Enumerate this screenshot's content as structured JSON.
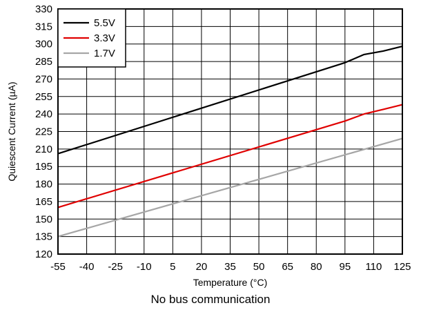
{
  "caption": "No bus communication",
  "chart_data": {
    "type": "line",
    "xlabel": "Temperature (°C)",
    "ylabel": "Quiescent Current (µA)",
    "xlim": [
      -55,
      125
    ],
    "ylim": [
      120,
      330
    ],
    "x_ticks": [
      "-55",
      "-40",
      "-25",
      "-10",
      "5",
      "20",
      "35",
      "50",
      "65",
      "80",
      "95",
      "110",
      "125"
    ],
    "y_ticks": [
      "330",
      "315",
      "300",
      "285",
      "270",
      "255",
      "240",
      "225",
      "210",
      "195",
      "180",
      "165",
      "150",
      "135",
      "120"
    ],
    "grid": true,
    "legend_position": "top-left",
    "series": [
      {
        "name": "5.5V",
        "color": "#000000",
        "x": [
          -55,
          95,
          105,
          115,
          125
        ],
        "y": [
          206,
          284,
          291,
          294,
          298
        ]
      },
      {
        "name": "3.3V",
        "color": "#e00000",
        "x": [
          -55,
          95,
          105,
          115,
          125
        ],
        "y": [
          160,
          234,
          240,
          244,
          248
        ]
      },
      {
        "name": "1.7V",
        "color": "#a6a6a6",
        "x": [
          -55,
          125
        ],
        "y": [
          135,
          219
        ]
      }
    ]
  }
}
